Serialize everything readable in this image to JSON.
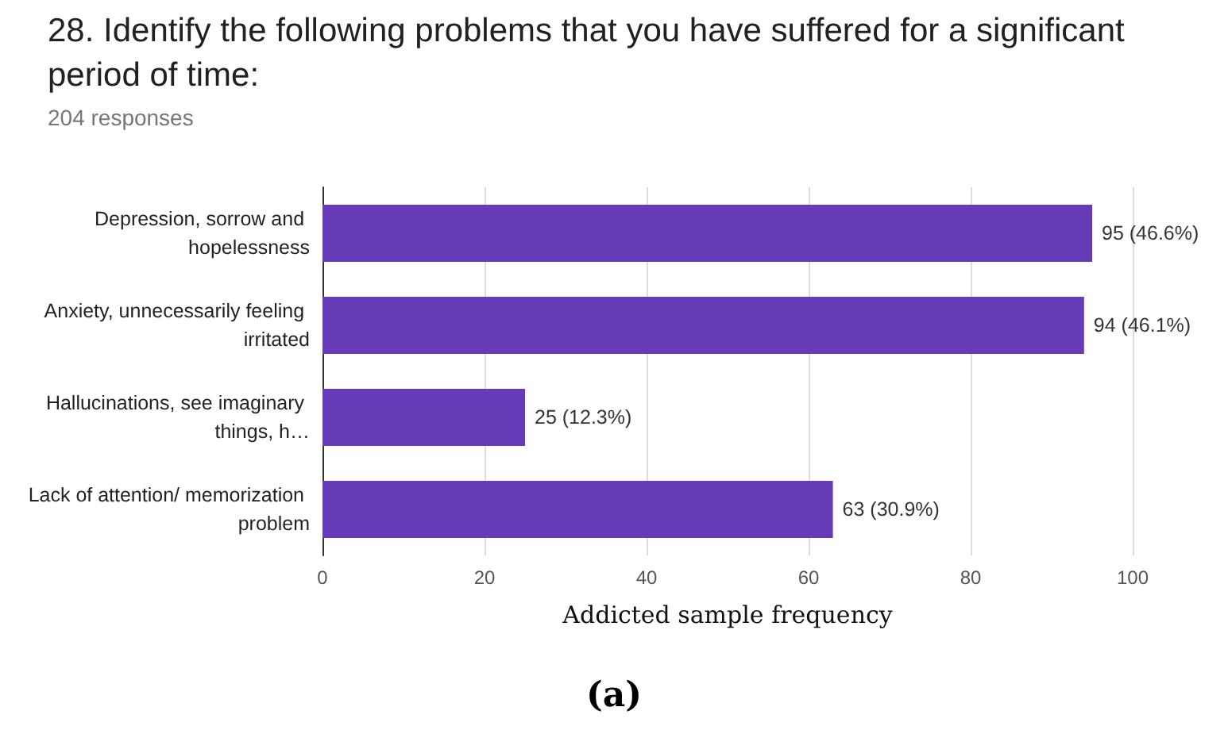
{
  "chart_data": {
    "type": "bar",
    "orientation": "horizontal",
    "title": "28. Identify the following problems that you have suffered for a significant period of time:",
    "subtitle": "204 responses",
    "categories": [
      "Depression, sorrow and hopelessness",
      "Anxiety, unnecessarily feeling irritated",
      "Hallucinations, see imaginary things, h…",
      "Lack of attention/ memorization problem"
    ],
    "values": [
      95,
      94,
      25,
      63
    ],
    "value_labels": [
      "95 (46.6%)",
      "94 (46.1%)",
      "25 (12.3%)",
      "63 (30.9%)"
    ],
    "color": "#673ab7",
    "xlabel": "Addicted sample frequency",
    "xlim": [
      0,
      100
    ],
    "xticks": [
      0,
      20,
      40,
      60,
      80,
      100
    ],
    "grid": "x",
    "annotations": [
      "(a)"
    ]
  }
}
